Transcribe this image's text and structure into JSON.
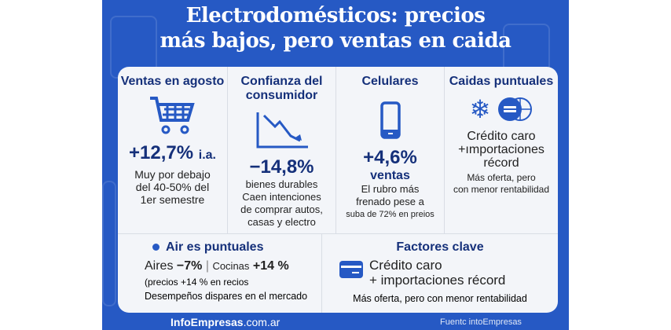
{
  "title": {
    "line1": "Electrodomésticos: precios",
    "line2": "más bajos, pero ventas en caida"
  },
  "cards": [
    {
      "title": "Ventas en agosto",
      "icon": "shopping-cart-icon",
      "value": "+12,7%",
      "value_suffix": "i.a.",
      "lines": [
        "Muy por debajo",
        "del 40-50% del",
        "1er semestre"
      ]
    },
    {
      "title": "Confianza del consumidor",
      "icon": "trend-down-icon",
      "value": "−14,8%",
      "lines": [
        "bienes durables",
        "Caen intenciones",
        "de comprar autos,",
        "casas y electro"
      ]
    },
    {
      "title": "Celulares",
      "icon": "smartphone-icon",
      "value": "+4,6%",
      "value_sub": "ventas",
      "lines": [
        "El rubro más",
        "frenado pese a",
        "suba de 72% en preios"
      ]
    },
    {
      "title": "Caidas puntuales",
      "icons": [
        "snowflake-icon",
        "globe-card-icon"
      ],
      "headline": [
        "Crédito caro",
        "+ımportaciones",
        "récord"
      ],
      "lines": [
        "Más oferta, pero",
        "con menor rentabilidad"
      ]
    }
  ],
  "aires": {
    "title": "Air es puntuales",
    "aires_label": "Aires",
    "aires_value": "−7%",
    "sep": "|",
    "cocinas_label": "Cocinas",
    "cocinas_value": "+14 %",
    "note": "(precios +14 % en recios",
    "footer": "Desempeños dispares en el mercado"
  },
  "factores": {
    "title": "Factores clave",
    "icon": "credit-card-icon",
    "line1": "Crédito caro",
    "line2": "+ importaciones récord",
    "footer": "Más oferta, pero con menor rentabilidad"
  },
  "footer": {
    "site_main": "InfoEmpresas",
    "site_tld": ".com.ar",
    "source": "Fuentc intoEmpresas"
  },
  "colors": {
    "background": "#2659c4",
    "navy": "#15307a",
    "card": "#f3f5f9"
  }
}
